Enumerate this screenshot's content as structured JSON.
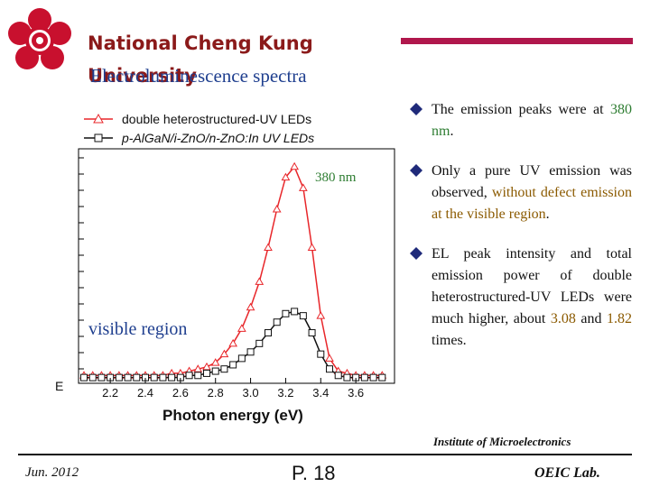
{
  "header": {
    "university_line1": "National Cheng Kung",
    "university_line2": "University",
    "slide_title": "Electroluminescence spectra"
  },
  "bullets": [
    {
      "parts": [
        {
          "text": "The emission peaks were at "
        },
        {
          "text": "380 nm",
          "hl": "green"
        },
        {
          "text": "."
        }
      ]
    },
    {
      "parts": [
        {
          "text": "Only a pure UV emission was observed, "
        },
        {
          "text": "without defect emission at the visible region",
          "hl": "orange"
        },
        {
          "text": "."
        }
      ]
    },
    {
      "parts": [
        {
          "text": "EL peak intensity and total emission power of double heterostructured-UV LEDs were much higher, about "
        },
        {
          "text": "3.08",
          "hl": "orange"
        },
        {
          "text": " and "
        },
        {
          "text": "1.82",
          "hl": "orange"
        },
        {
          "text": " times."
        }
      ]
    }
  ],
  "chart_data": {
    "type": "line",
    "xlabel": "Photon energy (eV)",
    "ylabel": "E",
    "xticks": [
      "2.2",
      "2.4",
      "2.6",
      "2.8",
      "3.0",
      "3.2",
      "3.4",
      "3.6"
    ],
    "xlim": [
      2.05,
      3.8
    ],
    "ylim": [
      0,
      1.05
    ],
    "annotations": [
      "380 nm",
      "visible region"
    ],
    "series": [
      {
        "name": "double heterostructured-UV LEDs",
        "color": "#e8262a",
        "marker": "triangle",
        "x": [
          2.05,
          2.1,
          2.15,
          2.2,
          2.25,
          2.3,
          2.35,
          2.4,
          2.45,
          2.5,
          2.55,
          2.6,
          2.65,
          2.7,
          2.75,
          2.8,
          2.85,
          2.9,
          2.95,
          3.0,
          3.05,
          3.1,
          3.15,
          3.2,
          3.25,
          3.3,
          3.35,
          3.4,
          3.45,
          3.5,
          3.55,
          3.6,
          3.65,
          3.7,
          3.75
        ],
        "y": [
          0.02,
          0.02,
          0.02,
          0.02,
          0.02,
          0.02,
          0.02,
          0.02,
          0.02,
          0.02,
          0.03,
          0.03,
          0.04,
          0.05,
          0.06,
          0.08,
          0.12,
          0.17,
          0.24,
          0.34,
          0.46,
          0.62,
          0.8,
          0.95,
          1.0,
          0.9,
          0.62,
          0.3,
          0.1,
          0.04,
          0.03,
          0.02,
          0.02,
          0.02,
          0.02
        ]
      },
      {
        "name": "p-AlGaN/i-ZnO/n-ZnO:In UV LEDs",
        "color": "#111111",
        "marker": "square",
        "x": [
          2.05,
          2.1,
          2.15,
          2.2,
          2.25,
          2.3,
          2.35,
          2.4,
          2.45,
          2.5,
          2.55,
          2.6,
          2.65,
          2.7,
          2.75,
          2.8,
          2.85,
          2.9,
          2.95,
          3.0,
          3.05,
          3.1,
          3.15,
          3.2,
          3.25,
          3.3,
          3.35,
          3.4,
          3.45,
          3.5,
          3.55,
          3.6,
          3.65,
          3.7,
          3.75
        ],
        "y": [
          0.01,
          0.01,
          0.01,
          0.01,
          0.01,
          0.01,
          0.01,
          0.01,
          0.01,
          0.01,
          0.01,
          0.01,
          0.02,
          0.02,
          0.03,
          0.04,
          0.05,
          0.07,
          0.1,
          0.13,
          0.17,
          0.22,
          0.27,
          0.31,
          0.32,
          0.3,
          0.22,
          0.12,
          0.05,
          0.02,
          0.01,
          0.01,
          0.01,
          0.01,
          0.01
        ]
      }
    ]
  },
  "footer": {
    "institute": "Institute of Microelectronics",
    "date": "Jun. 2012",
    "page": "P. 18",
    "lab": "OEIC Lab."
  }
}
